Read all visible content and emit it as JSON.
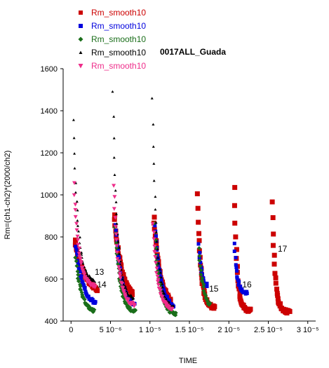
{
  "chart_data": {
    "type": "scatter",
    "title": "0017ALL_Guada",
    "xlabel": "TIME",
    "ylabel": "Rm=(ch1-ch2)*(2000/ch2)",
    "xlim": [
      -1e-06,
      3.1e-05
    ],
    "ylim": [
      400,
      1600
    ],
    "x_ticks": [
      {
        "value": 0,
        "label": "0"
      },
      {
        "value": 5e-06,
        "label": "5 10⁻⁶"
      },
      {
        "value": 1e-05,
        "label": "1 10⁻⁵"
      },
      {
        "value": 1.5e-05,
        "label": "1.5 10⁻⁵"
      },
      {
        "value": 2e-05,
        "label": "2 10⁻⁵"
      },
      {
        "value": 2.5e-05,
        "label": "2.5 10⁻⁵"
      },
      {
        "value": 3e-05,
        "label": "3 10⁻⁵"
      }
    ],
    "y_ticks": [
      {
        "value": 400,
        "label": "400"
      },
      {
        "value": 600,
        "label": "600"
      },
      {
        "value": 800,
        "label": "800"
      },
      {
        "value": 1000,
        "label": "1000"
      },
      {
        "value": 1200,
        "label": "1200"
      },
      {
        "value": 1400,
        "label": "1400"
      },
      {
        "value": 1600,
        "label": "1600"
      }
    ],
    "grid": false,
    "legend_position": "top-left",
    "series": [
      {
        "name": "Rm_smooth10",
        "color": "#cc0000",
        "marker": "square",
        "size": 7,
        "pulses": [
          {
            "x0": 5e-07,
            "peak": 780,
            "base": 520,
            "tau": 1.3e-06,
            "dur": 2.8e-06
          },
          {
            "x0": 5.5e-06,
            "peak": 905,
            "base": 500,
            "tau": 9e-07,
            "dur": 2.3e-06
          },
          {
            "x0": 1.05e-05,
            "peak": 895,
            "base": 470,
            "tau": 8e-07,
            "dur": 2.2e-06
          },
          {
            "x0": 1.6e-05,
            "peak": 1000,
            "base": 460,
            "tau": 4.5e-07,
            "dur": 2.2e-06
          },
          {
            "x0": 2.07e-05,
            "peak": 1035,
            "base": 448,
            "tau": 3.5e-07,
            "dur": 2.1e-06
          },
          {
            "x0": 2.55e-05,
            "peak": 968,
            "base": 442,
            "tau": 3.5e-07,
            "dur": 2.2e-06
          }
        ]
      },
      {
        "name": "Rm_smooth10",
        "color": "#0000dd",
        "marker": "square",
        "size": 5,
        "pulses": [
          {
            "x0": 6e-07,
            "peak": 760,
            "base": 470,
            "tau": 9e-07,
            "dur": 2.5e-06
          },
          {
            "x0": 5.6e-06,
            "peak": 860,
            "base": 460,
            "tau": 8e-07,
            "dur": 2.5e-06
          },
          {
            "x0": 1.06e-05,
            "peak": 860,
            "base": 450,
            "tau": 8e-07,
            "dur": 2.5e-06
          },
          {
            "x0": 1.62e-05,
            "peak": 760,
            "base": 560,
            "tau": 3.5e-07,
            "dur": 1.1e-06
          },
          {
            "x0": 2.07e-05,
            "peak": 770,
            "base": 530,
            "tau": 3.5e-07,
            "dur": 1.6e-06
          }
        ]
      },
      {
        "name": "Rm_smooth10",
        "color": "#1a6e1a",
        "marker": "diamond",
        "size": 5,
        "pulses": [
          {
            "x0": 6e-07,
            "peak": 700,
            "base": 440,
            "tau": 7e-07,
            "dur": 2.4e-06
          },
          {
            "x0": 5.6e-06,
            "peak": 850,
            "base": 440,
            "tau": 6e-07,
            "dur": 2.6e-06
          },
          {
            "x0": 1.06e-05,
            "peak": 860,
            "base": 430,
            "tau": 6e-07,
            "dur": 2.7e-06
          },
          {
            "x0": 1.62e-05,
            "peak": 740,
            "base": 450,
            "tau": 6e-07,
            "dur": 1.4e-06
          }
        ]
      },
      {
        "name": "Rm_smooth10",
        "color": "#000000",
        "marker": "triangle",
        "size": 3,
        "pulses": [
          {
            "x0": 3e-07,
            "peak": 1350,
            "base": 580,
            "tau": 6e-07,
            "dur": 2.8e-06
          },
          {
            "x0": 5.3e-06,
            "peak": 1495,
            "base": 500,
            "tau": 5.5e-07,
            "dur": 2.7e-06
          },
          {
            "x0": 1.03e-05,
            "peak": 1460,
            "base": 460,
            "tau": 5.5e-07,
            "dur": 2.8e-06
          }
        ]
      },
      {
        "name": "Rm_smooth10",
        "color": "#ee2d8a",
        "marker": "triangle-down",
        "size": 5,
        "pulses": [
          {
            "x0": 4e-07,
            "peak": 1050,
            "base": 560,
            "tau": 6e-07,
            "dur": 2.7e-06
          },
          {
            "x0": 5.4e-06,
            "peak": 1040,
            "base": 470,
            "tau": 6e-07,
            "dur": 2.7e-06
          },
          {
            "x0": 1.04e-05,
            "peak": 860,
            "base": 450,
            "tau": 6e-07,
            "dur": 2.5e-06
          }
        ]
      }
    ],
    "annotations": [
      {
        "text": "13",
        "x": 3e-06,
        "y": 620
      },
      {
        "text": "14",
        "x": 3.3e-06,
        "y": 560
      },
      {
        "text": "15",
        "x": 1.75e-05,
        "y": 540
      },
      {
        "text": "16",
        "x": 2.17e-05,
        "y": 560
      },
      {
        "text": "17",
        "x": 2.62e-05,
        "y": 730
      }
    ]
  }
}
